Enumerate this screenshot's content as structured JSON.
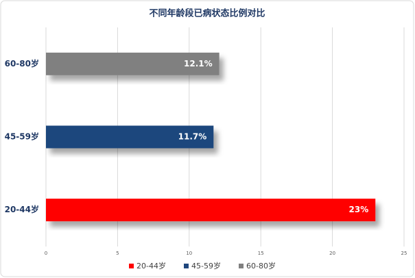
{
  "chart_data": {
    "type": "bar",
    "orientation": "horizontal",
    "title": "不同年龄段已病状态比例对比",
    "categories": [
      "20-44岁",
      "45-59岁",
      "60-80岁"
    ],
    "values": [
      23,
      11.7,
      12.1
    ],
    "value_labels": [
      "23%",
      "11.7%",
      "12.1%"
    ],
    "colors": [
      "#ff0000",
      "#1f477d",
      "#808080"
    ],
    "xlim": [
      0,
      25
    ],
    "xticks": [
      0,
      5,
      10,
      15,
      20,
      25
    ],
    "grid": true,
    "legend": "bottom"
  }
}
